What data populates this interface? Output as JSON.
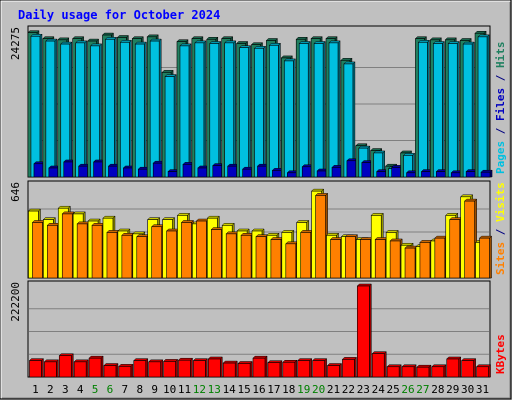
{
  "chart_data": {
    "title": "Daily usage for October 2024",
    "type": "bar",
    "categories": [
      "1",
      "2",
      "3",
      "4",
      "5",
      "6",
      "7",
      "8",
      "9",
      "10",
      "11",
      "12",
      "13",
      "14",
      "15",
      "16",
      "17",
      "18",
      "19",
      "20",
      "21",
      "22",
      "23",
      "24",
      "25",
      "26",
      "27",
      "28",
      "29",
      "30",
      "31"
    ],
    "weekend_days": [
      "5",
      "6",
      "12",
      "13",
      "19",
      "20",
      "26",
      "27"
    ],
    "panels": [
      {
        "name": "hits-files-pages",
        "ymax_label": "24275",
        "ymax": 24275,
        "right_label_parts": [
          {
            "text": "Pages",
            "color": "#00c0e0"
          },
          {
            "text": " / ",
            "color": "#000080"
          },
          {
            "text": "Files",
            "color": "#0000c0"
          },
          {
            "text": " / ",
            "color": "#000080"
          },
          {
            "text": "Hits",
            "color": "#208060"
          }
        ],
        "series": [
          {
            "name": "Hits",
            "color": "#208060",
            "values": [
              24000,
              23000,
              22800,
              23000,
              22600,
              23600,
              23200,
              23000,
              23300,
              17400,
              22500,
              23000,
              22900,
              23000,
              22200,
              22000,
              22700,
              19800,
              22900,
              23000,
              23000,
              19400,
              5200,
              4400,
              1800,
              4000,
              23000,
              22800,
              22800,
              22700,
              23900
            ]
          },
          {
            "name": "Files",
            "color": "#00c0e0",
            "values": [
              23400,
              22600,
              22100,
              22300,
              21800,
              22900,
              22400,
              22100,
              22600,
              16700,
              21800,
              22300,
              22200,
              22300,
              21500,
              21400,
              21900,
              19300,
              22200,
              22200,
              22300,
              18800,
              4800,
              4000,
              1400,
              3600,
              22400,
              22200,
              22200,
              22100,
              23300
            ]
          },
          {
            "name": "Pages",
            "color": "#0000c0",
            "values": [
              2200,
              1500,
              2500,
              1800,
              2500,
              1800,
              1500,
              1300,
              2300,
              900,
              2100,
              1500,
              1900,
              1800,
              1300,
              1800,
              1100,
              700,
              1700,
              1000,
              1600,
              2700,
              2400,
              900,
              1600,
              700,
              900,
              900,
              700,
              900,
              800
            ]
          }
        ]
      },
      {
        "name": "visits-sites",
        "ymax_label": "646",
        "ymax": 646,
        "right_label_parts": [
          {
            "text": "Sites",
            "color": "#ff8000"
          },
          {
            "text": " / ",
            "color": "#000080"
          },
          {
            "text": "Visits",
            "color": "#ffff00"
          }
        ],
        "series": [
          {
            "name": "Visits",
            "color": "#ffff00",
            "values": [
              470,
              410,
              490,
              450,
              400,
              420,
              330,
              310,
              410,
              410,
              440,
              380,
              420,
              370,
              330,
              330,
              300,
              320,
              390,
              610,
              300,
              290,
              270,
              440,
              320,
              230,
              220,
              260,
              440,
              570,
              250
            ]
          },
          {
            "name": "Sites",
            "color": "#ff8000",
            "values": [
              390,
              370,
              450,
              380,
              370,
              320,
              300,
              290,
              360,
              330,
              390,
              400,
              340,
              310,
              300,
              290,
              270,
              240,
              320,
              580,
              270,
              290,
              270,
              270,
              260,
              210,
              250,
              280,
              410,
              540,
              280
            ]
          }
        ]
      },
      {
        "name": "kbytes",
        "ymax_label": "222200",
        "ymax": 222200,
        "right_label_parts": [
          {
            "text": "KBytes",
            "color": "#ff0000"
          }
        ],
        "series": [
          {
            "name": "KBytes",
            "color": "#ff0000",
            "values": [
              40000,
              37000,
              52000,
              37000,
              46000,
              28000,
              26000,
              40000,
              37000,
              38000,
              41000,
              40000,
              44000,
              34000,
              33000,
              46000,
              35000,
              36000,
              40000,
              40000,
              28000,
              43000,
              222200,
              57000,
              25000,
              25000,
              24000,
              25000,
              44000,
              40000,
              25000
            ]
          }
        ]
      }
    ]
  }
}
